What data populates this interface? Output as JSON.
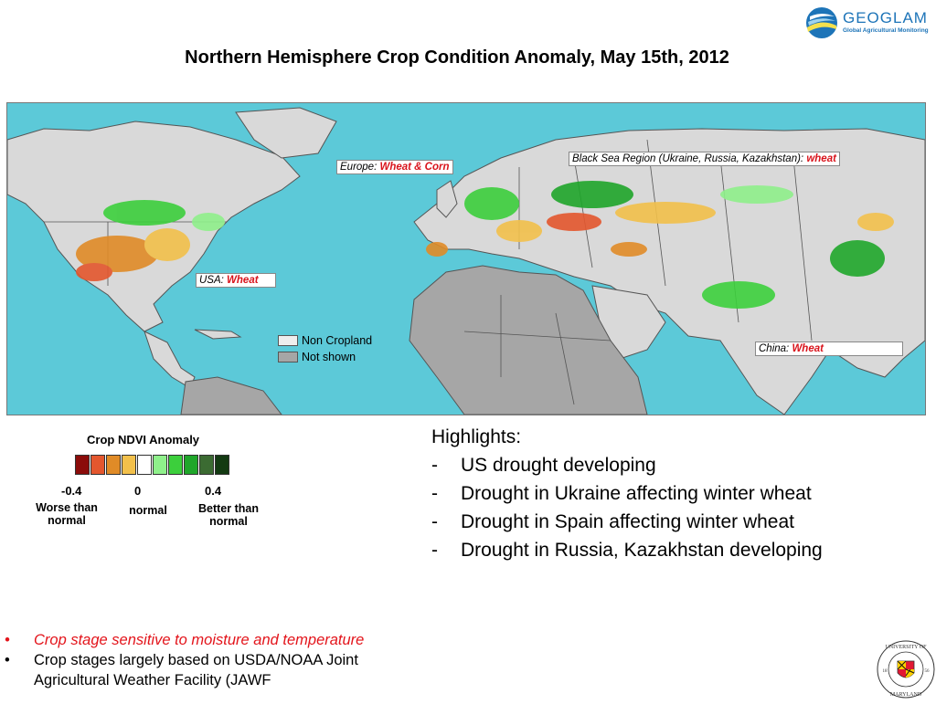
{
  "title": "Northern Hemisphere Crop Condition Anomaly, May 15th, 2012",
  "logo": {
    "name": "GEOGLAM",
    "subtitle": "Global Agricultural Monitoring"
  },
  "map": {
    "labels": [
      {
        "region": "Europe:",
        "crop": "Wheat & Corn"
      },
      {
        "region": "Black Sea Region (Ukraine, Russia, Kazakhstan):",
        "crop": "wheat"
      },
      {
        "region": "USA:",
        "crop": "Wheat"
      },
      {
        "region": "China:",
        "crop": "Wheat"
      }
    ],
    "key": [
      {
        "label": "Non Cropland",
        "color": "#eeeeee"
      },
      {
        "label": "Not shown",
        "color": "#a6a6a6"
      }
    ],
    "colors": {
      "ocean": "#5cc9d8",
      "land": "#d9d9d9",
      "africa": "#a6a6a6",
      "borders": "#555555"
    }
  },
  "legend": {
    "title": "Crop NDVI Anomaly",
    "colors": [
      "#8b0c0a",
      "#e4572e",
      "#e08b27",
      "#f2c04b",
      "#ffffff",
      "#8ff08b",
      "#3ccf3c",
      "#1fa62a",
      "#3b6b32",
      "#133a12"
    ],
    "ticks": [
      {
        "value": "-0.4",
        "desc": "Worse than normal"
      },
      {
        "value": "0",
        "desc": "normal"
      },
      {
        "value": "0.4",
        "desc": "Better than normal"
      }
    ]
  },
  "highlights": {
    "heading": "Highlights:",
    "items": [
      "US drought developing",
      "Drought in Ukraine affecting winter wheat",
      "Drought in Spain affecting winter wheat",
      "Drought in Russia, Kazakhstan developing"
    ]
  },
  "notes": [
    "Crop stage sensitive to moisture and temperature",
    "Crop stages largely based on USDA/NOAA Joint Agricultural Weather Facility (JAWF"
  ],
  "seal": {
    "top": "UNIVERSITY OF",
    "bottom": "MARYLAND",
    "year_left": "18",
    "year_right": "56"
  }
}
